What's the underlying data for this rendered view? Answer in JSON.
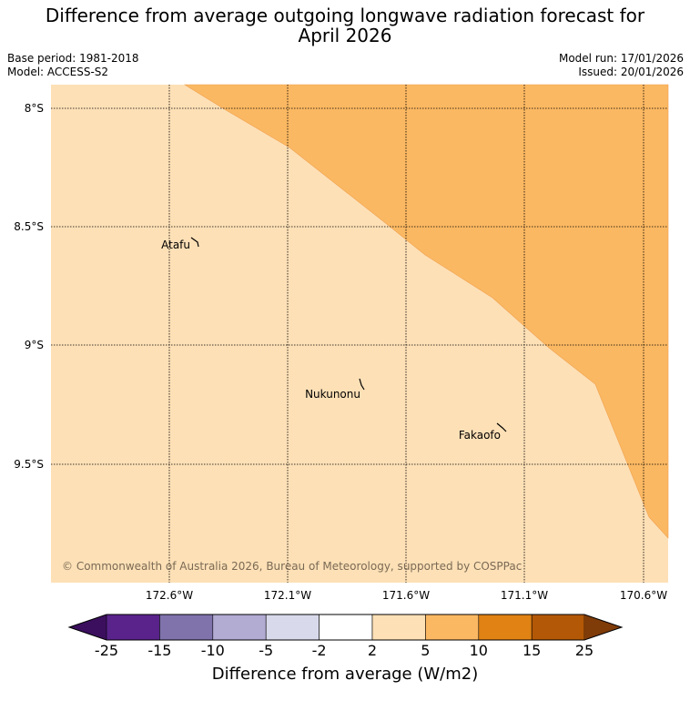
{
  "title_line1": "Difference from average outgoing longwave radiation forecast for",
  "title_line2": "April 2026",
  "meta": {
    "base_period": "Base period: 1981-2018",
    "model": "Model: ACCESS-S2",
    "model_run": "Model run: 17/01/2026",
    "issued": "Issued: 20/01/2026"
  },
  "map": {
    "lat_labels": [
      "8°S",
      "8.5°S",
      "9°S",
      "9.5°S"
    ],
    "lon_labels": [
      "172.6°W",
      "172.1°W",
      "171.6°W",
      "171.1°W",
      "170.6°W"
    ],
    "places": [
      {
        "name": "Atafu"
      },
      {
        "name": "Nukunonu"
      },
      {
        "name": "Fakaofo"
      }
    ],
    "copyright": "© Commonwealth of Australia 2026, Bureau of Meteorology, supported by COSPPac",
    "fill_colors": {
      "range_2_to_5": "#fde0b6",
      "range_5_to_10": "#fbb862"
    }
  },
  "colorbar": {
    "label": "Difference from average (W/m2)",
    "ticks": [
      "-25",
      "-15",
      "-10",
      "-5",
      "-2",
      "2",
      "5",
      "10",
      "15",
      "25"
    ],
    "colors": [
      "#3b0f5e",
      "#59238b",
      "#8073ac",
      "#b2abd2",
      "#d8daeb",
      "#ffffff",
      "#fde0b6",
      "#fbb862",
      "#e08214",
      "#b35806",
      "#7f3b08"
    ]
  }
}
